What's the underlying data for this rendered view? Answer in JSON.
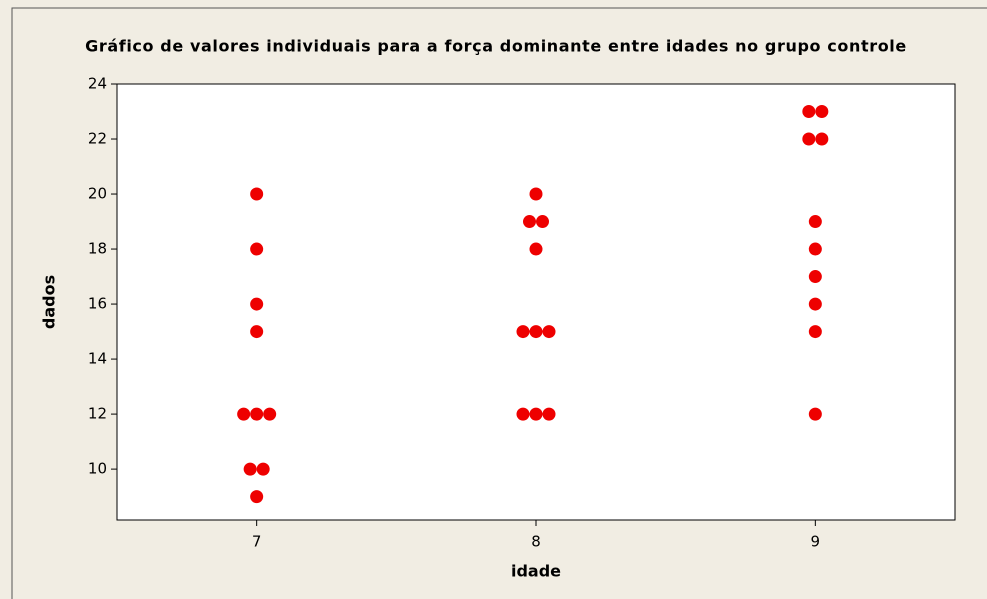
{
  "chart_data": {
    "type": "scatter",
    "title": "Gráfico de valores individuais para a força dominante entre idades no grupo controle",
    "x_label": "idade",
    "y_label": "dados",
    "color": "#ee0000",
    "x": [
      7,
      7,
      7,
      7,
      7,
      7,
      7,
      7,
      7,
      7,
      8,
      8,
      8,
      8,
      8,
      8,
      8,
      8,
      8,
      8,
      9,
      9,
      9,
      9,
      9,
      9,
      9,
      9,
      9,
      9
    ],
    "values": [
      20,
      18,
      16,
      15,
      12,
      12,
      12,
      10,
      10,
      9,
      20,
      19,
      19,
      18,
      15,
      15,
      15,
      12,
      12,
      12,
      23,
      23,
      22,
      22,
      19,
      18,
      17,
      16,
      15,
      12
    ],
    "xlim": [
      6.5,
      9.5
    ],
    "xticks": [
      7,
      8,
      9
    ],
    "ylim": [
      8.15,
      24
    ],
    "yticks": [
      10,
      12,
      14,
      16,
      18,
      20,
      22,
      24
    ]
  }
}
